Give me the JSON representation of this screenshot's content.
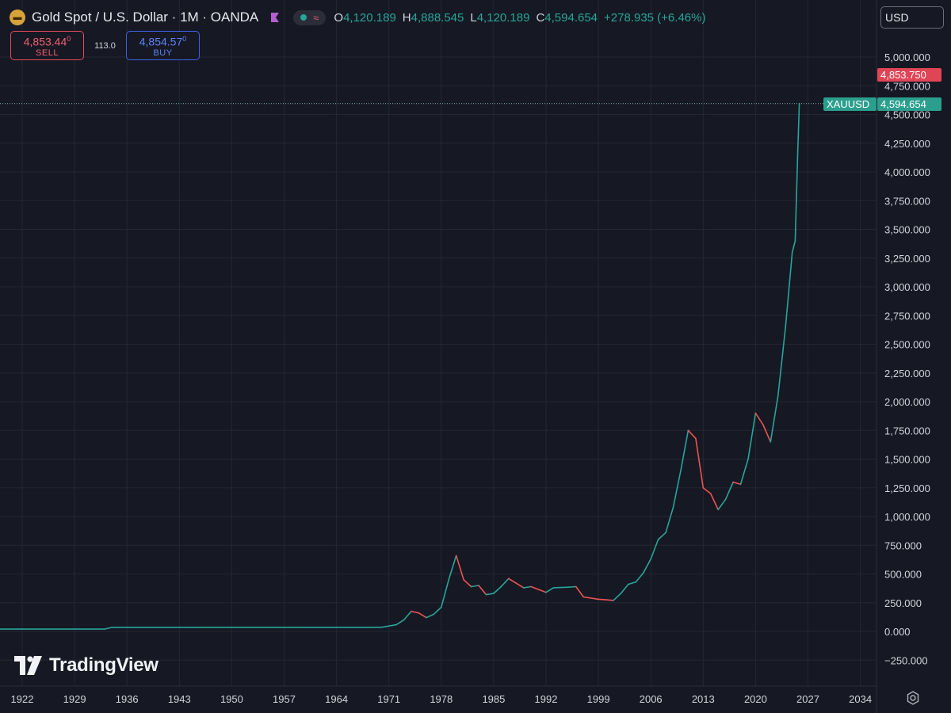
{
  "header": {
    "title": "Gold Spot / U.S. Dollar · 1M · OANDA",
    "symbol_icon": "gold-bars-icon",
    "flag_icon": "flag-icon",
    "ohlc": [
      {
        "key": "O",
        "value": "4,120.189"
      },
      {
        "key": "H",
        "value": "4,888.545"
      },
      {
        "key": "L",
        "value": "4,120.189"
      },
      {
        "key": "C",
        "value": "4,594.654"
      }
    ],
    "change": "+278.935 (+6.46%)",
    "colors": {
      "up": "#26a69a",
      "down": "#ef5350",
      "sell": "#f0616e",
      "buy": "#5b84ff"
    }
  },
  "trade": {
    "sell_price": "4,853.44",
    "sell_price_sup": "0",
    "sell_label": "SELL",
    "spread": "113.0",
    "buy_price": "4,854.57",
    "buy_price_sup": "0",
    "buy_label": "BUY"
  },
  "currency": {
    "selected": "USD"
  },
  "price_tags": {
    "high": "4,853.750",
    "symbol": "XAUUSD",
    "last": "4,594.654"
  },
  "watermark": {
    "text": "TradingView"
  },
  "chart_data": {
    "type": "line",
    "title": "",
    "xlabel": "",
    "ylabel": "",
    "x_ticks": [
      "1922",
      "1929",
      "1936",
      "1943",
      "1950",
      "1957",
      "1964",
      "1971",
      "1978",
      "1985",
      "1992",
      "1999",
      "2006",
      "2013",
      "2020",
      "2027",
      "2034"
    ],
    "y_ticks": [
      "5,000.000",
      "4,750.000",
      "4,500.000",
      "4,250.000",
      "4,000.000",
      "3,750.000",
      "3,500.000",
      "3,250.000",
      "3,000.000",
      "2,750.000",
      "2,500.000",
      "2,250.000",
      "2,000.000",
      "1,750.000",
      "1,500.000",
      "1,250.000",
      "1,000.000",
      "750.000",
      "500.000",
      "250.000",
      "0.000",
      "−250.000"
    ],
    "ylim": [
      -250,
      5000
    ],
    "xlim": [
      1922,
      2034
    ],
    "grid": true,
    "last_price": 4594.654,
    "series": [
      {
        "points": [
          [
            1915,
            20
          ],
          [
            1933,
            20
          ],
          [
            1934,
            35
          ],
          [
            1968,
            35
          ],
          [
            1970,
            36
          ],
          [
            1972,
            58
          ],
          [
            1973,
            100
          ],
          [
            1974,
            175
          ],
          [
            1975,
            160
          ],
          [
            1976,
            120
          ],
          [
            1977,
            150
          ],
          [
            1978,
            210
          ],
          [
            1979,
            450
          ],
          [
            1980,
            660
          ],
          [
            1981,
            450
          ],
          [
            1982,
            390
          ],
          [
            1983,
            400
          ],
          [
            1984,
            320
          ],
          [
            1985,
            330
          ],
          [
            1986,
            390
          ],
          [
            1987,
            460
          ],
          [
            1988,
            420
          ],
          [
            1989,
            380
          ],
          [
            1990,
            390
          ],
          [
            1992,
            340
          ],
          [
            1993,
            380
          ],
          [
            1995,
            385
          ],
          [
            1996,
            390
          ],
          [
            1997,
            300
          ],
          [
            1999,
            280
          ],
          [
            2000,
            275
          ],
          [
            2001,
            270
          ],
          [
            2002,
            330
          ],
          [
            2003,
            410
          ],
          [
            2004,
            430
          ],
          [
            2005,
            510
          ],
          [
            2006,
            630
          ],
          [
            2007,
            800
          ],
          [
            2008,
            860
          ],
          [
            2009,
            1080
          ],
          [
            2010,
            1400
          ],
          [
            2011,
            1750
          ],
          [
            2012,
            1680
          ],
          [
            2013,
            1250
          ],
          [
            2014,
            1200
          ],
          [
            2015,
            1060
          ],
          [
            2016,
            1150
          ],
          [
            2017,
            1300
          ],
          [
            2018,
            1280
          ],
          [
            2019,
            1500
          ],
          [
            2020,
            1900
          ],
          [
            2021,
            1800
          ],
          [
            2022,
            1650
          ],
          [
            2023,
            2050
          ],
          [
            2024,
            2650
          ],
          [
            2024.9,
            3300
          ],
          [
            2025.3,
            3400
          ],
          [
            2025.6,
            4100
          ],
          [
            2025.85,
            4594.654
          ]
        ]
      }
    ]
  }
}
